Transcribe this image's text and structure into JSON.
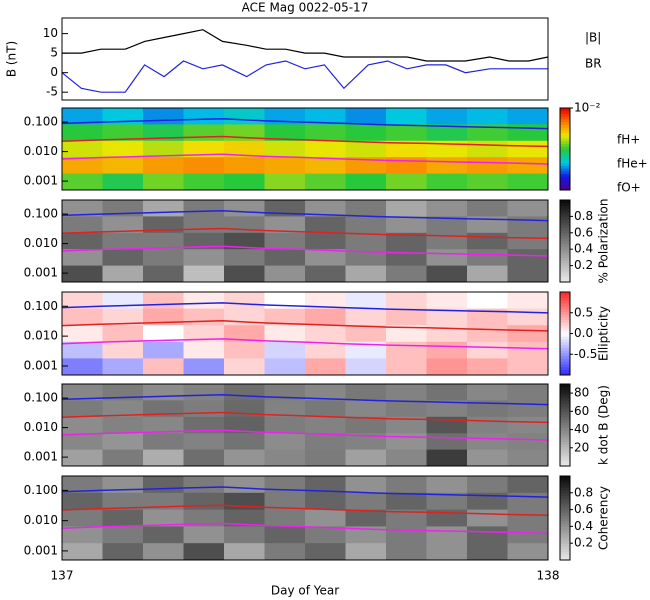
{
  "chart_data": [
    {
      "type": "line",
      "title": "ACE Mag 0022-05-17",
      "ylabel": "B (nT)",
      "ylim": [
        -7,
        14
      ],
      "yticks": [
        -5,
        0,
        5,
        10
      ],
      "x": [
        137,
        137.04,
        137.08,
        137.13,
        137.17,
        137.21,
        137.25,
        137.29,
        137.33,
        137.38,
        137.42,
        137.46,
        137.5,
        137.54,
        137.58,
        137.63,
        137.67,
        137.71,
        137.75,
        137.79,
        137.83,
        137.88,
        137.92,
        137.96,
        138
      ],
      "series": [
        {
          "name": "|B|",
          "color": "#000000",
          "values": [
            5,
            5,
            6,
            6,
            8,
            9,
            10,
            11,
            8,
            7,
            6,
            6,
            5,
            5,
            4,
            4,
            4,
            4,
            3,
            3,
            3,
            4,
            3,
            3,
            4
          ]
        },
        {
          "name": "BR",
          "color": "#2222dd",
          "values": [
            0,
            -4,
            -5,
            -5,
            2,
            -1,
            3,
            1,
            2,
            -1,
            2,
            3,
            1,
            2,
            -4,
            2,
            3,
            1,
            2,
            2,
            0,
            1,
            1,
            1,
            1
          ]
        }
      ]
    },
    {
      "type": "heatmap",
      "colormap": "rainbow",
      "ylim": [
        0.0005,
        0.3
      ],
      "log": true,
      "yticks": [
        0.001,
        {
          "value": 0.01,
          "label": "0.010"
        },
        {
          "value": 0.1,
          "label": "0.100"
        }
      ],
      "clim": [
        -7,
        -2
      ],
      "cticks": [
        {
          "value": -2,
          "label": "10⁻²"
        }
      ],
      "z": [
        [
          -5.5,
          -5.3,
          -5.6,
          -5.4,
          -5.2,
          -5.5,
          -5.4,
          -5.6,
          -5.3,
          -5.5,
          -5.4,
          -5.5
        ],
        [
          -4.5,
          -4.4,
          -4.6,
          -4.3,
          -4.2,
          -4.5,
          -4.4,
          -4.5,
          -4.4,
          -4.6,
          -4.4,
          -4.5
        ],
        [
          -3.8,
          -3.7,
          -3.9,
          -3.6,
          -3.5,
          -3.8,
          -3.7,
          -3.8,
          -3.6,
          -3.7,
          -3.8,
          -3.7
        ],
        [
          -3.2,
          -3.3,
          -3.1,
          -3.0,
          -3.1,
          -3.2,
          -3.3,
          -3.1,
          -3.0,
          -3.2,
          -3.1,
          -3.2
        ],
        [
          -4.3,
          -4.6,
          -4.2,
          -4.4,
          -4.5,
          -4.1,
          -4.3,
          -4.5,
          -4.2,
          -4.4,
          -4.3,
          -4.4
        ]
      ],
      "x": [
        137,
        137.08,
        137.17,
        137.25,
        137.33,
        137.42,
        137.5,
        137.58,
        137.67,
        137.75,
        137.83,
        137.92,
        138
      ],
      "series": [
        {
          "name": "fH+",
          "color": "#2222dd",
          "values": [
            0.09,
            0.1,
            0.11,
            0.12,
            0.13,
            0.11,
            0.1,
            0.09,
            0.08,
            0.075,
            0.07,
            0.065,
            0.06
          ]
        },
        {
          "name": "fHe+",
          "color": "#dd2222",
          "values": [
            0.0225,
            0.025,
            0.0275,
            0.03,
            0.0325,
            0.0275,
            0.025,
            0.0225,
            0.02,
            0.019,
            0.0175,
            0.016,
            0.015
          ]
        },
        {
          "name": "fO+",
          "color": "#ee22ee",
          "values": [
            0.0056,
            0.0063,
            0.0069,
            0.0075,
            0.0081,
            0.0069,
            0.0063,
            0.0056,
            0.005,
            0.0047,
            0.0044,
            0.0041,
            0.0038
          ]
        }
      ]
    },
    {
      "type": "heatmap",
      "colormap": "gray",
      "clabel": "% Polarization",
      "ylim": [
        0.0005,
        0.3
      ],
      "log": true,
      "yticks": [
        0.001,
        {
          "value": 0.01,
          "label": "0.010"
        },
        {
          "value": 0.1,
          "label": "0.100"
        }
      ],
      "clim": [
        0,
        1
      ],
      "cticks": [
        0.2,
        0.4,
        0.6,
        0.8
      ],
      "z": [
        [
          0.4,
          0.5,
          0.3,
          0.5,
          0.4,
          0.6,
          0.4,
          0.5,
          0.3,
          0.4,
          0.5,
          0.4
        ],
        [
          0.5,
          0.4,
          0.6,
          0.5,
          0.5,
          0.4,
          0.6,
          0.5,
          0.4,
          0.5,
          0.4,
          0.5
        ],
        [
          0.6,
          0.5,
          0.5,
          0.6,
          0.7,
          0.5,
          0.6,
          0.5,
          0.6,
          0.5,
          0.6,
          0.5
        ],
        [
          0.4,
          0.6,
          0.5,
          0.4,
          0.5,
          0.6,
          0.4,
          0.5,
          0.6,
          0.4,
          0.5,
          0.6
        ],
        [
          0.7,
          0.3,
          0.6,
          0.2,
          0.7,
          0.4,
          0.6,
          0.3,
          0.5,
          0.7,
          0.3,
          0.6
        ]
      ]
    },
    {
      "type": "heatmap",
      "colormap": "bwr",
      "clabel": "Ellipticity",
      "ylim": [
        0.0005,
        0.3
      ],
      "log": true,
      "yticks": [
        0.001,
        {
          "value": 0.01,
          "label": "0.010"
        },
        {
          "value": 0.1,
          "label": "0.100"
        }
      ],
      "clim": [
        -1,
        1
      ],
      "cticks": [
        0.5,
        {
          "value": 0,
          "label": "0.0"
        },
        -0.5
      ],
      "z": [
        [
          0.2,
          -0.1,
          0.3,
          0.1,
          0.2,
          0.0,
          0.1,
          -0.1,
          0.2,
          0.1,
          0.0,
          0.1
        ],
        [
          0.3,
          0.2,
          0.4,
          0.3,
          0.2,
          0.3,
          0.4,
          0.2,
          0.3,
          0.2,
          0.3,
          0.2
        ],
        [
          0.1,
          0.3,
          0.0,
          0.2,
          0.4,
          0.1,
          0.2,
          0.3,
          0.1,
          0.2,
          0.3,
          0.4
        ],
        [
          -0.3,
          0.2,
          -0.4,
          0.1,
          0.3,
          -0.2,
          0.2,
          -0.1,
          0.3,
          0.4,
          0.2,
          0.3
        ],
        [
          -0.6,
          -0.4,
          0.3,
          -0.5,
          0.2,
          -0.3,
          0.4,
          -0.2,
          0.3,
          0.5,
          0.4,
          0.3
        ]
      ]
    },
    {
      "type": "heatmap",
      "colormap": "gray",
      "clabel": "k dot B (Deg)",
      "ylim": [
        0.0005,
        0.3
      ],
      "log": true,
      "yticks": [
        0.001,
        {
          "value": 0.01,
          "label": "0.010"
        },
        {
          "value": 0.1,
          "label": "0.100"
        }
      ],
      "clim": [
        0,
        90
      ],
      "cticks": [
        20,
        40,
        60,
        80
      ],
      "z": [
        [
          40,
          45,
          38,
          42,
          50,
          44,
          40,
          46,
          42,
          48,
          40,
          44
        ],
        [
          45,
          40,
          48,
          44,
          52,
          42,
          46,
          40,
          44,
          42,
          46,
          44
        ],
        [
          38,
          42,
          40,
          50,
          55,
          44,
          42,
          46,
          40,
          60,
          42,
          40
        ],
        [
          40,
          35,
          45,
          42,
          48,
          38,
          44,
          42,
          36,
          50,
          40,
          42
        ],
        [
          30,
          45,
          25,
          50,
          35,
          40,
          45,
          30,
          40,
          70,
          35,
          40
        ]
      ]
    },
    {
      "type": "heatmap",
      "colormap": "gray",
      "clabel": "Coherency",
      "ylim": [
        0.0005,
        0.3
      ],
      "log": true,
      "yticks": [
        0.001,
        {
          "value": 0.01,
          "label": "0.010"
        },
        {
          "value": 0.1,
          "label": "0.100"
        }
      ],
      "clim": [
        0,
        1
      ],
      "cticks": [
        0.2,
        0.4,
        0.6,
        0.8
      ],
      "z": [
        [
          0.5,
          0.4,
          0.6,
          0.5,
          0.4,
          0.5,
          0.6,
          0.4,
          0.5,
          0.4,
          0.5,
          0.6
        ],
        [
          0.6,
          0.5,
          0.5,
          0.6,
          0.7,
          0.5,
          0.6,
          0.5,
          0.6,
          0.5,
          0.6,
          0.5
        ],
        [
          0.5,
          0.6,
          0.4,
          0.5,
          0.6,
          0.5,
          0.4,
          0.6,
          0.5,
          0.6,
          0.4,
          0.5
        ],
        [
          0.4,
          0.5,
          0.6,
          0.4,
          0.5,
          0.6,
          0.5,
          0.4,
          0.5,
          0.4,
          0.6,
          0.5
        ],
        [
          0.3,
          0.6,
          0.4,
          0.7,
          0.3,
          0.5,
          0.6,
          0.3,
          0.5,
          0.4,
          0.6,
          0.4
        ]
      ],
      "xlim": [
        137,
        138
      ],
      "xticks": [
        137,
        138
      ],
      "xlabel": "Day of Year"
    }
  ]
}
